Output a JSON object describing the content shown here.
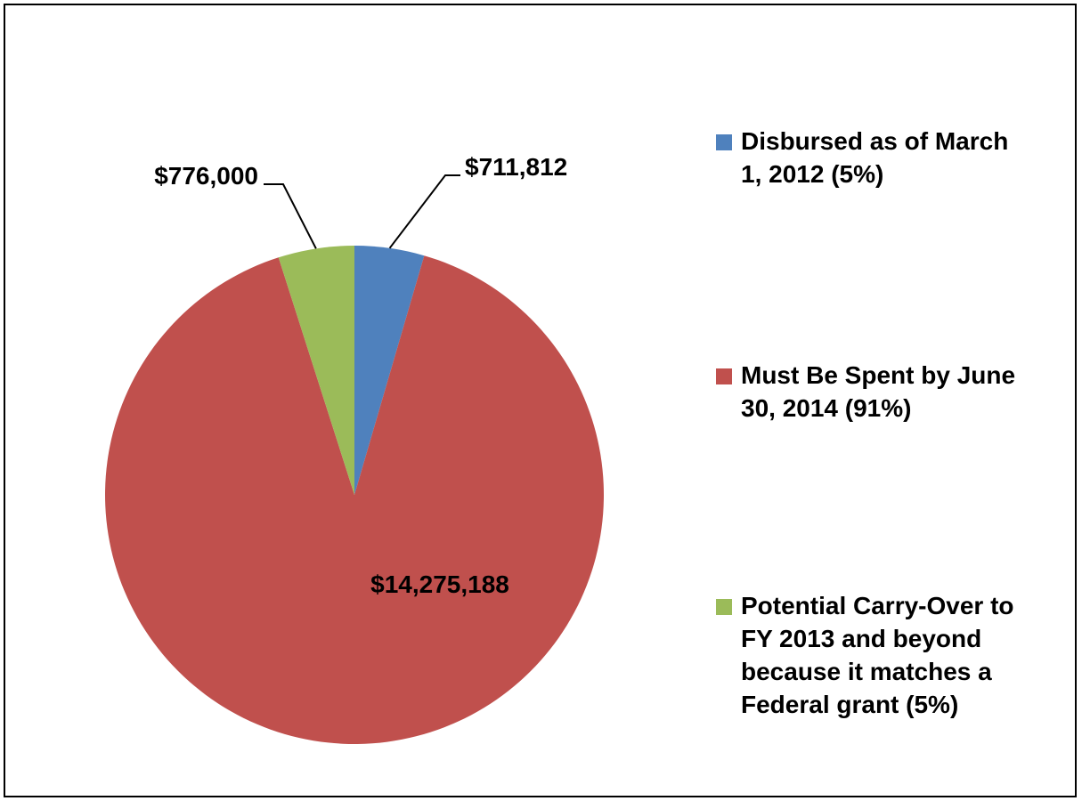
{
  "chart_data": {
    "type": "pie",
    "title": "",
    "categories": [
      "Disbursed as of March 1, 2012 (5%)",
      "Must Be Spent by June 30, 2014 (91%)",
      "Potential Carry-Over to FY 2013 and beyond because it matches a Federal grant (5%)"
    ],
    "values": [
      711812,
      14275188,
      776000
    ],
    "data_labels": [
      "$711,812",
      "$14,275,188",
      "$776,000"
    ],
    "colors": [
      "#4F81BD",
      "#C0504D",
      "#9BBB59"
    ],
    "legend_position": "right"
  },
  "legend": {
    "items": [
      {
        "label": "Disbursed as of March\n1, 2012 (5%)",
        "color": "#4F81BD"
      },
      {
        "label": "Must Be Spent by June\n30, 2014 (91%)",
        "color": "#C0504D"
      },
      {
        "label": "Potential Carry-Over to\nFY 2013 and beyond\nbecause it matches a\nFederal grant (5%)",
        "color": "#9BBB59"
      }
    ]
  }
}
